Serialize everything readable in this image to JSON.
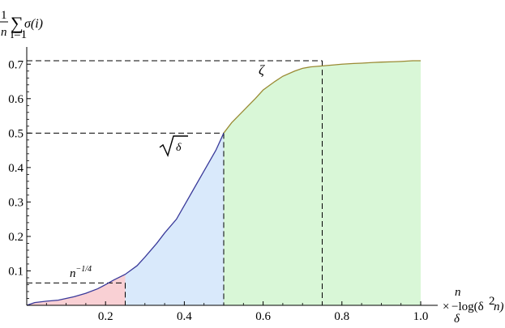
{
  "chart_data": {
    "type": "area",
    "x_range": [
      0,
      1.0
    ],
    "y_range": [
      0,
      0.72
    ],
    "x_ticks": [
      0.2,
      0.4,
      0.6,
      0.8,
      1.0
    ],
    "x_tick_labels": [
      "0.2",
      "0.4",
      "0.6",
      "0.8",
      "1.0"
    ],
    "y_ticks": [
      0.1,
      0.2,
      0.3,
      0.4,
      0.5,
      0.6,
      0.7
    ],
    "y_tick_labels": [
      "0.1",
      "0.2",
      "0.3",
      "0.4",
      "0.5",
      "0.6",
      "0.7"
    ],
    "ylabel": {
      "prefix_num": "1",
      "prefix_den": "n",
      "sum_sub": "i=1",
      "body": "σ(i)"
    },
    "xlabel": {
      "frac_num": "n",
      "frac_den": "δ",
      "times": "×",
      "log_text": "−log(δ",
      "log_exp": "2",
      "log_tail": "n)"
    },
    "regions": [
      {
        "name": "red",
        "x": [
          0,
          0.25
        ],
        "color": "#f9d0d4"
      },
      {
        "name": "blue",
        "x": [
          0.25,
          0.5
        ],
        "color": "#d9e9fb"
      },
      {
        "name": "green",
        "x": [
          0.5,
          1.0
        ],
        "color": "#d9f7d7"
      }
    ],
    "curve_colors": {
      "left": "#3a3a9a",
      "right": "#9a8a33"
    },
    "series": [
      {
        "x": [
          0.0,
          0.02,
          0.05,
          0.08,
          0.1,
          0.12,
          0.15,
          0.18,
          0.2,
          0.22,
          0.25,
          0.28,
          0.3,
          0.33,
          0.35,
          0.38,
          0.4,
          0.42,
          0.45,
          0.48,
          0.5,
          0.52,
          0.55,
          0.58,
          0.6,
          0.63,
          0.65,
          0.68,
          0.7,
          0.72,
          0.75,
          0.78,
          0.8,
          0.83,
          0.85,
          0.88,
          0.9,
          0.93,
          0.95,
          0.98,
          1.0
        ],
        "y": [
          0.0,
          0.008,
          0.012,
          0.015,
          0.02,
          0.025,
          0.035,
          0.048,
          0.06,
          0.073,
          0.09,
          0.115,
          0.14,
          0.18,
          0.21,
          0.25,
          0.29,
          0.33,
          0.39,
          0.45,
          0.5,
          0.53,
          0.565,
          0.6,
          0.625,
          0.65,
          0.665,
          0.68,
          0.688,
          0.692,
          0.695,
          0.698,
          0.7,
          0.702,
          0.703,
          0.705,
          0.706,
          0.707,
          0.708,
          0.71,
          0.71
        ]
      }
    ],
    "guides": [
      {
        "x": 0.25,
        "y": 0.065
      },
      {
        "x": 0.5,
        "y": 0.5
      },
      {
        "x": 0.75,
        "y": 0.71
      }
    ],
    "annotations": [
      {
        "name": "n-quarter",
        "base": "n",
        "exp": "−1/4",
        "x": 0.17,
        "y": 0.075
      },
      {
        "name": "sqrt-delta",
        "text": "δ",
        "x": 0.4,
        "y": 0.44
      },
      {
        "name": "zeta",
        "text": "ζ",
        "x": 0.59,
        "y": 0.67
      }
    ]
  }
}
